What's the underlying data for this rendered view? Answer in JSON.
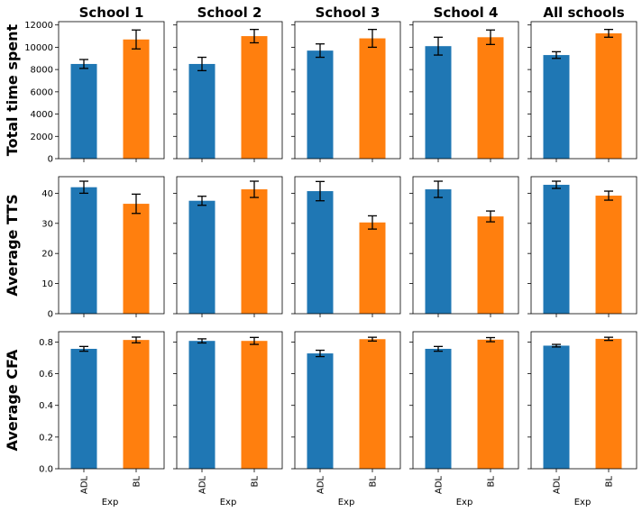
{
  "chart_data": {
    "type": "bar",
    "layout": "grid-3x5",
    "columns": [
      "School 1",
      "School 2",
      "School 3",
      "School 4",
      "All schools"
    ],
    "categories": [
      "ADL",
      "BL"
    ],
    "xlabel": "Exp",
    "colors": {
      "ADL": "#1f77b4",
      "BL": "#ff7f0e"
    },
    "rows": [
      {
        "ylabel": "Total time spent",
        "ylim": [
          0,
          12300
        ],
        "yticks": [
          0,
          2000,
          4000,
          6000,
          8000,
          10000,
          12000
        ],
        "panels": [
          {
            "values": [
              8500,
              10700
            ],
            "errors": [
              400,
              850
            ]
          },
          {
            "values": [
              8500,
              11000
            ],
            "errors": [
              600,
              600
            ]
          },
          {
            "values": [
              9700,
              10800
            ],
            "errors": [
              600,
              800
            ]
          },
          {
            "values": [
              10100,
              10900
            ],
            "errors": [
              800,
              650
            ]
          },
          {
            "values": [
              9300,
              11250
            ],
            "errors": [
              300,
              350
            ]
          }
        ]
      },
      {
        "ylabel": "Average TTS",
        "ylim": [
          0,
          45.5
        ],
        "yticks": [
          0,
          10,
          20,
          30,
          40
        ],
        "panels": [
          {
            "values": [
              42,
              36.5
            ],
            "errors": [
              2,
              3.2
            ]
          },
          {
            "values": [
              37.5,
              41.3
            ],
            "errors": [
              1.5,
              2.7
            ]
          },
          {
            "values": [
              40.7,
              30.3
            ],
            "errors": [
              3.2,
              2.2
            ]
          },
          {
            "values": [
              41.3,
              32.3
            ],
            "errors": [
              2.7,
              1.8
            ]
          },
          {
            "values": [
              42.8,
              39.2
            ],
            "errors": [
              1.2,
              1.5
            ]
          }
        ]
      },
      {
        "ylabel": "Average CFA",
        "ylim": [
          0,
          0.865
        ],
        "yticks": [
          0.0,
          0.2,
          0.4,
          0.6,
          0.8
        ],
        "panels": [
          {
            "values": [
              0.757,
              0.813
            ],
            "errors": [
              0.015,
              0.018
            ]
          },
          {
            "values": [
              0.807,
              0.807
            ],
            "errors": [
              0.013,
              0.022
            ]
          },
          {
            "values": [
              0.728,
              0.818
            ],
            "errors": [
              0.02,
              0.012
            ]
          },
          {
            "values": [
              0.757,
              0.815
            ],
            "errors": [
              0.015,
              0.013
            ]
          },
          {
            "values": [
              0.777,
              0.82
            ],
            "errors": [
              0.008,
              0.01
            ]
          }
        ]
      }
    ]
  }
}
